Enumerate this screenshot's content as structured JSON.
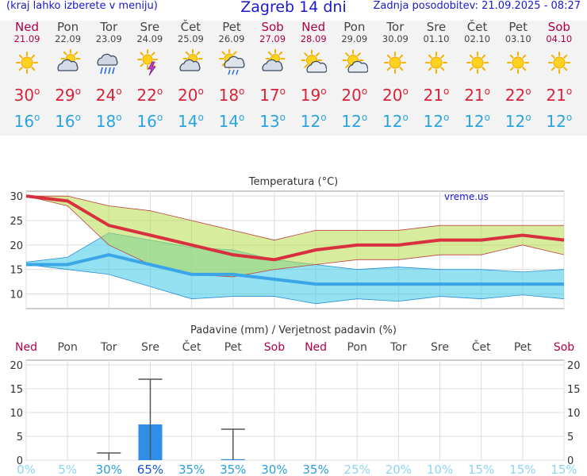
{
  "header": {
    "left_note": "(kraj lahko izberete v meniju)",
    "title": "Zagreb 14 dni",
    "updated": "Zadnja posodobitev: 21.09.2025 - 08:27"
  },
  "days": [
    {
      "name": "Ned",
      "date": "21.09",
      "weekend": true,
      "icon": "sun-icon",
      "tmax": "30",
      "tmin": "16"
    },
    {
      "name": "Pon",
      "date": "22.09",
      "weekend": false,
      "icon": "partly-cloudy-icon",
      "tmax": "29",
      "tmin": "16"
    },
    {
      "name": "Tor",
      "date": "23.09",
      "weekend": false,
      "icon": "rain-cloud-icon",
      "tmax": "24",
      "tmin": "18"
    },
    {
      "name": "Sre",
      "date": "24.09",
      "weekend": false,
      "icon": "sun-thunder-icon",
      "tmax": "22",
      "tmin": "16"
    },
    {
      "name": "Čet",
      "date": "25.09",
      "weekend": false,
      "icon": "partly-cloudy-icon",
      "tmax": "20",
      "tmin": "14"
    },
    {
      "name": "Pet",
      "date": "26.09",
      "weekend": false,
      "icon": "sun-shower-icon",
      "tmax": "18",
      "tmin": "14"
    },
    {
      "name": "Sob",
      "date": "27.09",
      "weekend": true,
      "icon": "partly-cloudy-icon",
      "tmax": "17",
      "tmin": "13"
    },
    {
      "name": "Ned",
      "date": "28.09",
      "weekend": true,
      "icon": "sun-cloud-icon",
      "tmax": "19",
      "tmin": "12"
    },
    {
      "name": "Pon",
      "date": "29.09",
      "weekend": false,
      "icon": "sun-cloud-icon",
      "tmax": "20",
      "tmin": "12"
    },
    {
      "name": "Tor",
      "date": "30.09",
      "weekend": false,
      "icon": "sun-icon",
      "tmax": "20",
      "tmin": "12"
    },
    {
      "name": "Sre",
      "date": "01.10",
      "weekend": false,
      "icon": "sun-icon",
      "tmax": "21",
      "tmin": "12"
    },
    {
      "name": "Čet",
      "date": "02.10",
      "weekend": false,
      "icon": "sun-icon",
      "tmax": "21",
      "tmin": "12"
    },
    {
      "name": "Pet",
      "date": "03.10",
      "weekend": false,
      "icon": "sun-icon",
      "tmax": "22",
      "tmin": "12"
    },
    {
      "name": "Sob",
      "date": "04.10",
      "weekend": true,
      "icon": "sun-icon",
      "tmax": "21",
      "tmin": "12"
    }
  ],
  "chart_data": [
    {
      "type": "line",
      "title": "Temperatura (°C)",
      "watermark": "vreme.us",
      "ylim": [
        7,
        31
      ],
      "yticks": [
        10,
        15,
        20,
        25,
        30
      ],
      "grid": true,
      "series": [
        {
          "name": "max",
          "color": "#d8303e",
          "values": [
            30,
            29,
            24,
            22,
            20,
            18,
            17,
            19,
            20,
            20,
            21,
            21,
            22,
            21
          ]
        },
        {
          "name": "min",
          "color": "#3aa6e8",
          "values": [
            16,
            16,
            18,
            16,
            14,
            14,
            13,
            12,
            12,
            12,
            12,
            12,
            12,
            12
          ]
        },
        {
          "name": "max_upper",
          "values": [
            30,
            30,
            28,
            27,
            25,
            23,
            21,
            23,
            23,
            23,
            24,
            24,
            24,
            24
          ]
        },
        {
          "name": "max_lower",
          "values": [
            30,
            28,
            20,
            16,
            14,
            13.5,
            15,
            16,
            17,
            17,
            18,
            18,
            20,
            18
          ]
        },
        {
          "name": "min_upper",
          "values": [
            16.5,
            17.5,
            22.5,
            21,
            19.5,
            19,
            17,
            16,
            15,
            15.5,
            15,
            15,
            14.5,
            15
          ]
        },
        {
          "name": "min_lower",
          "values": [
            16,
            15,
            14,
            11.5,
            9,
            9.5,
            9.5,
            8,
            9,
            8.5,
            9.5,
            9,
            9.8,
            9
          ]
        }
      ]
    },
    {
      "type": "bar",
      "title": "Padavine (mm) / Verjetnost padavin (%)",
      "ylim": [
        0,
        21
      ],
      "yticks": [
        0,
        5,
        10,
        15,
        20
      ],
      "grid": true,
      "categories": [
        "Ned",
        "Pon",
        "Tor",
        "Sre",
        "Čet",
        "Pet",
        "Sob",
        "Ned",
        "Pon",
        "Tor",
        "Sre",
        "Čet",
        "Pet",
        "Sob"
      ],
      "weekend": [
        true,
        false,
        false,
        false,
        false,
        false,
        true,
        true,
        false,
        false,
        false,
        false,
        false,
        true
      ],
      "values": [
        0,
        0,
        0,
        7.5,
        0,
        0.2,
        0,
        0,
        0,
        0,
        0,
        0,
        0,
        0
      ],
      "error_high": [
        0,
        0,
        1.5,
        17,
        0,
        6.5,
        0,
        0,
        0,
        0,
        0,
        0,
        0,
        0
      ],
      "probability": [
        "0%",
        "5%",
        "30%",
        "65%",
        "35%",
        "35%",
        "30%",
        "35%",
        "25%",
        "20%",
        "10%",
        "15%",
        "15%",
        "15%"
      ]
    }
  ]
}
